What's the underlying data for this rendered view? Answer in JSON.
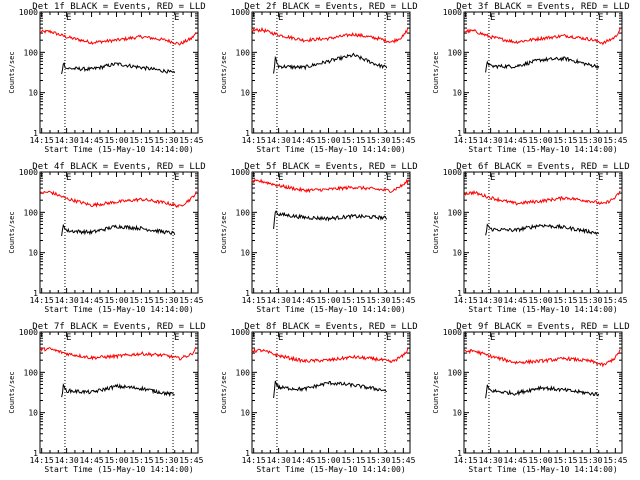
{
  "chart_data": [
    {
      "type": "line",
      "title": "Det 1f BLACK = Events, RED = LLD",
      "xlabel": "Start Time (15-May-10 14:14:00)",
      "ylabel": "Counts/sec",
      "y_scale": "log",
      "ylim": [
        1,
        1000
      ],
      "x_ticks": [
        "14:15",
        "14:30",
        "14:45",
        "15:00",
        "15:15",
        "15:30",
        "15:45"
      ],
      "y_ticks": [
        "1",
        "10",
        "100",
        "1000"
      ],
      "markers": [
        "E",
        "E"
      ],
      "marker_times": [
        "14:29",
        "15:34"
      ],
      "series": [
        {
          "color": "#ff0000",
          "x": [
            "14:14",
            "14:20",
            "14:30",
            "14:45",
            "15:00",
            "15:15",
            "15:30",
            "15:38",
            "15:45",
            "15:48"
          ],
          "values": [
            320,
            330,
            240,
            175,
            200,
            245,
            200,
            160,
            220,
            300
          ]
        },
        {
          "color": "#000000",
          "x": [
            "14:27",
            "14:28",
            "14:30",
            "14:45",
            "15:00",
            "15:15",
            "15:30",
            "15:35"
          ],
          "values": [
            28,
            55,
            40,
            38,
            52,
            42,
            34,
            30
          ]
        }
      ]
    },
    {
      "type": "line",
      "title": "Det 2f BLACK = Events, RED = LLD",
      "xlabel": "Start Time (15-May-10 14:14:00)",
      "ylabel": "Counts/sec",
      "y_scale": "log",
      "ylim": [
        1,
        1000
      ],
      "x_ticks": [
        "14:15",
        "14:30",
        "14:45",
        "15:00",
        "15:15",
        "15:30",
        "15:45"
      ],
      "y_ticks": [
        "1",
        "10",
        "100",
        "1000"
      ],
      "markers": [
        "E",
        "E"
      ],
      "marker_times": [
        "14:29",
        "15:34"
      ],
      "series": [
        {
          "color": "#ff0000",
          "x": [
            "14:14",
            "14:20",
            "14:30",
            "14:45",
            "15:00",
            "15:15",
            "15:30",
            "15:38",
            "15:45",
            "15:48"
          ],
          "values": [
            350,
            360,
            270,
            200,
            220,
            280,
            220,
            180,
            250,
            400
          ]
        },
        {
          "color": "#000000",
          "x": [
            "14:27",
            "14:28",
            "14:30",
            "14:45",
            "15:00",
            "15:15",
            "15:30",
            "15:35"
          ],
          "values": [
            30,
            70,
            45,
            42,
            60,
            85,
            48,
            42
          ]
        }
      ]
    },
    {
      "type": "line",
      "title": "Det 3f BLACK = Events, RED = LLD",
      "xlabel": "Start Time (15-May-10 14:14:00)",
      "ylabel": "Counts/sec",
      "y_scale": "log",
      "ylim": [
        1,
        1000
      ],
      "x_ticks": [
        "14:15",
        "14:30",
        "14:45",
        "15:00",
        "15:15",
        "15:30",
        "15:45"
      ],
      "y_ticks": [
        "1",
        "10",
        "100",
        "1000"
      ],
      "markers": [
        "E",
        "E"
      ],
      "marker_times": [
        "14:29",
        "15:34"
      ],
      "series": [
        {
          "color": "#ff0000",
          "x": [
            "14:14",
            "14:20",
            "14:30",
            "14:45",
            "15:00",
            "15:15",
            "15:30",
            "15:38",
            "15:45",
            "15:48"
          ],
          "values": [
            330,
            340,
            240,
            180,
            220,
            260,
            210,
            170,
            240,
            380
          ]
        },
        {
          "color": "#000000",
          "x": [
            "14:27",
            "14:28",
            "14:30",
            "14:45",
            "15:00",
            "15:15",
            "15:30",
            "15:35"
          ],
          "values": [
            30,
            60,
            45,
            45,
            65,
            70,
            48,
            45
          ]
        }
      ]
    },
    {
      "type": "line",
      "title": "Det 4f BLACK = Events, RED = LLD",
      "xlabel": "Start Time (15-May-10 14:14:00)",
      "ylabel": "Counts/sec",
      "y_scale": "log",
      "ylim": [
        1,
        1000
      ],
      "x_ticks": [
        "14:15",
        "14:30",
        "14:45",
        "15:00",
        "15:15",
        "15:30",
        "15:45"
      ],
      "y_ticks": [
        "1",
        "10",
        "100",
        "1000"
      ],
      "markers": [
        "E",
        "E"
      ],
      "marker_times": [
        "14:29",
        "15:34"
      ],
      "series": [
        {
          "color": "#ff0000",
          "x": [
            "14:14",
            "14:20",
            "14:30",
            "14:45",
            "15:00",
            "15:15",
            "15:30",
            "15:38",
            "15:45",
            "15:48"
          ],
          "values": [
            300,
            320,
            220,
            150,
            180,
            210,
            170,
            140,
            220,
            310
          ]
        },
        {
          "color": "#000000",
          "x": [
            "14:27",
            "14:28",
            "14:30",
            "14:45",
            "15:00",
            "15:15",
            "15:30",
            "15:35"
          ],
          "values": [
            25,
            50,
            35,
            32,
            45,
            40,
            32,
            30
          ]
        }
      ]
    },
    {
      "type": "line",
      "title": "Det 5f BLACK = Events, RED = LLD",
      "xlabel": "Start Time (15-May-10 14:14:00)",
      "ylabel": "Counts/sec",
      "y_scale": "log",
      "ylim": [
        1,
        1000
      ],
      "x_ticks": [
        "14:15",
        "14:30",
        "14:45",
        "15:00",
        "15:15",
        "15:30",
        "15:45"
      ],
      "y_ticks": [
        "1",
        "10",
        "100",
        "1000"
      ],
      "markers": [
        "E",
        "E"
      ],
      "marker_times": [
        "14:29",
        "15:34"
      ],
      "series": [
        {
          "color": "#ff0000",
          "x": [
            "14:14",
            "14:20",
            "14:30",
            "14:45",
            "15:00",
            "15:15",
            "15:30",
            "15:38",
            "15:45",
            "15:48"
          ],
          "values": [
            580,
            590,
            460,
            350,
            370,
            420,
            370,
            340,
            480,
            620
          ]
        },
        {
          "color": "#000000",
          "x": [
            "14:27",
            "14:28",
            "14:30",
            "14:45",
            "15:00",
            "15:15",
            "15:30",
            "15:35"
          ],
          "values": [
            40,
            110,
            90,
            75,
            70,
            80,
            75,
            72
          ]
        }
      ]
    },
    {
      "type": "line",
      "title": "Det 6f BLACK = Events, RED = LLD",
      "xlabel": "Start Time (15-May-10 14:14:00)",
      "ylabel": "Counts/sec",
      "y_scale": "log",
      "ylim": [
        1,
        1000
      ],
      "x_ticks": [
        "14:15",
        "14:30",
        "14:45",
        "15:00",
        "15:15",
        "15:30",
        "15:45"
      ],
      "y_ticks": [
        "1",
        "10",
        "100",
        "1000"
      ],
      "markers": [
        "E",
        "E"
      ],
      "marker_times": [
        "14:29",
        "15:34"
      ],
      "series": [
        {
          "color": "#ff0000",
          "x": [
            "14:14",
            "14:20",
            "14:30",
            "14:45",
            "15:00",
            "15:15",
            "15:30",
            "15:38",
            "15:45",
            "15:48"
          ],
          "values": [
            290,
            310,
            230,
            165,
            190,
            230,
            190,
            160,
            230,
            330
          ]
        },
        {
          "color": "#000000",
          "x": [
            "14:27",
            "14:28",
            "14:30",
            "14:45",
            "15:00",
            "15:15",
            "15:30",
            "15:35"
          ],
          "values": [
            25,
            50,
            38,
            36,
            48,
            42,
            33,
            30
          ]
        }
      ]
    },
    {
      "type": "line",
      "title": "Det 7f BLACK = Events, RED = LLD",
      "xlabel": "Start Time (15-May-10 14:14:00)",
      "ylabel": "Counts/sec",
      "y_scale": "log",
      "ylim": [
        1,
        1000
      ],
      "x_ticks": [
        "14:15",
        "14:30",
        "14:45",
        "15:00",
        "15:15",
        "15:30",
        "15:45"
      ],
      "y_ticks": [
        "1",
        "10",
        "100",
        "1000"
      ],
      "markers": [
        "E",
        "E"
      ],
      "marker_times": [
        "14:29",
        "15:34"
      ],
      "series": [
        {
          "color": "#ff0000",
          "x": [
            "14:14",
            "14:20",
            "14:30",
            "14:45",
            "15:00",
            "15:15",
            "15:30",
            "15:38",
            "15:45",
            "15:48"
          ],
          "values": [
            370,
            380,
            290,
            230,
            250,
            290,
            260,
            220,
            280,
            400
          ]
        },
        {
          "color": "#000000",
          "x": [
            "14:27",
            "14:28",
            "14:30",
            "14:45",
            "15:00",
            "15:15",
            "15:30",
            "15:35"
          ],
          "values": [
            25,
            45,
            35,
            32,
            45,
            40,
            30,
            28
          ]
        }
      ]
    },
    {
      "type": "line",
      "title": "Det 8f BLACK = Events, RED = LLD",
      "xlabel": "Start Time (15-May-10 14:14:00)",
      "ylabel": "Counts/sec",
      "y_scale": "log",
      "ylim": [
        1,
        1000
      ],
      "x_ticks": [
        "14:15",
        "14:30",
        "14:45",
        "15:00",
        "15:15",
        "15:30",
        "15:45"
      ],
      "y_ticks": [
        "1",
        "10",
        "100",
        "1000"
      ],
      "markers": [
        "E",
        "E"
      ],
      "marker_times": [
        "14:29",
        "15:34"
      ],
      "series": [
        {
          "color": "#ff0000",
          "x": [
            "14:14",
            "14:20",
            "14:30",
            "14:45",
            "15:00",
            "15:15",
            "15:30",
            "15:38",
            "15:45",
            "15:48"
          ],
          "values": [
            340,
            350,
            260,
            190,
            200,
            240,
            210,
            180,
            260,
            380
          ]
        },
        {
          "color": "#000000",
          "x": [
            "14:27",
            "14:28",
            "14:30",
            "14:45",
            "15:00",
            "15:15",
            "15:30",
            "15:35"
          ],
          "values": [
            25,
            60,
            42,
            38,
            55,
            48,
            38,
            35
          ]
        }
      ]
    },
    {
      "type": "line",
      "title": "Det 9f BLACK = Events, RED = LLD",
      "xlabel": "Start Time (15-May-10 14:14:00)",
      "ylabel": "Counts/sec",
      "y_scale": "log",
      "ylim": [
        1,
        1000
      ],
      "x_ticks": [
        "14:15",
        "14:30",
        "14:45",
        "15:00",
        "15:15",
        "15:30",
        "15:45"
      ],
      "y_ticks": [
        "1",
        "10",
        "100",
        "1000"
      ],
      "markers": [
        "E",
        "E"
      ],
      "marker_times": [
        "14:29",
        "15:34"
      ],
      "series": [
        {
          "color": "#ff0000",
          "x": [
            "14:14",
            "14:20",
            "14:30",
            "14:45",
            "15:00",
            "15:15",
            "15:30",
            "15:38",
            "15:45",
            "15:48"
          ],
          "values": [
            330,
            340,
            250,
            175,
            190,
            220,
            190,
            150,
            230,
            360
          ]
        },
        {
          "color": "#000000",
          "x": [
            "14:27",
            "14:28",
            "14:30",
            "14:45",
            "15:00",
            "15:15",
            "15:30",
            "15:35"
          ],
          "values": [
            22,
            45,
            35,
            30,
            42,
            36,
            30,
            28
          ]
        }
      ]
    }
  ]
}
